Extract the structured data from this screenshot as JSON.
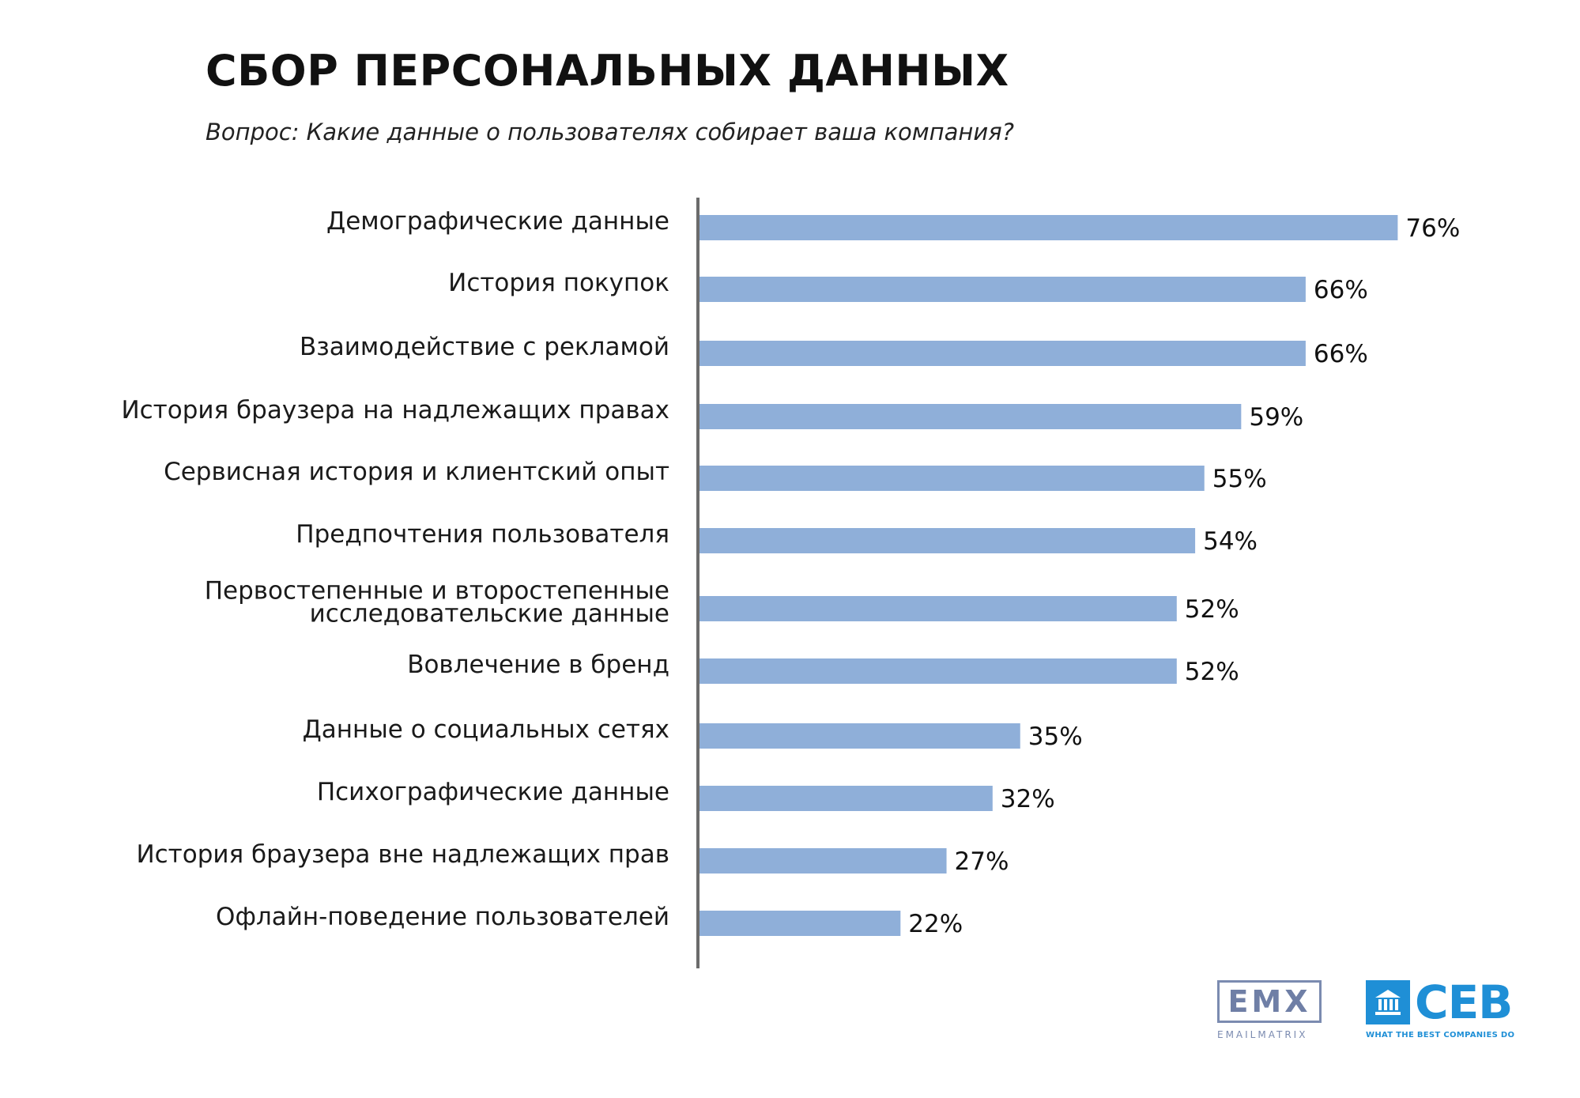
{
  "title": "СБОР ПЕРСОНАЛЬНЫХ ДАННЫХ",
  "subtitle": "Вопрос: Какие данные о пользователях собирает ваша компания?",
  "chart_data": {
    "type": "bar",
    "orientation": "horizontal",
    "categories": [
      [
        "Демографические данные"
      ],
      [
        "История покупок"
      ],
      [
        "Взаимодействие с рекламой"
      ],
      [
        "История браузера на надлежащих правах"
      ],
      [
        "Сервисная история и клиентский опыт"
      ],
      [
        "Предпочтения пользователя"
      ],
      [
        "Первостепенные и второстепенные",
        "исследовательские данные"
      ],
      [
        "Вовлечение в бренд"
      ],
      [
        "Данные о социальных сетях"
      ],
      [
        "Психографические данные"
      ],
      [
        "История браузера вне надлежащих прав"
      ],
      [
        "Офлайн-поведение пользователей"
      ]
    ],
    "values": [
      76,
      66,
      66,
      59,
      55,
      54,
      52,
      52,
      35,
      32,
      27,
      22
    ],
    "value_labels": [
      "76%",
      "66%",
      "66%",
      "59%",
      "55%",
      "54%",
      "52%",
      "52%",
      "35%",
      "32%",
      "27%",
      "22%"
    ],
    "bar_color": "#8fafd9",
    "axis_color": "#6b6b6b",
    "xlim": [
      0,
      100
    ],
    "grid": false,
    "legend": "none"
  },
  "logos": {
    "emx_mark": "EMX",
    "emx_sub": "EMAILMATRIX",
    "ceb_mark": "CEB",
    "ceb_sub": "WHAT THE BEST COMPANIES DO",
    "emx_color": "#7b8bb0",
    "ceb_color": "#1f8fd6"
  }
}
